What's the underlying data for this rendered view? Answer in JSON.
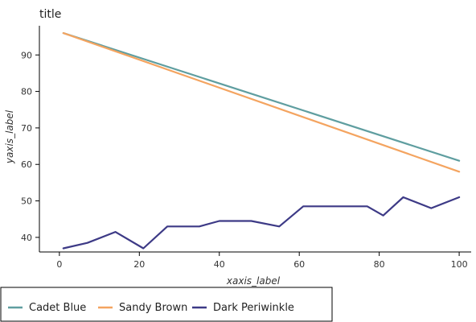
{
  "chart_data": {
    "type": "line",
    "title": "title",
    "xlabel": "xaxis_label",
    "ylabel": "yaxis_label",
    "xlim": [
      -5,
      103
    ],
    "ylim": [
      36,
      98
    ],
    "xticks": [
      0,
      20,
      40,
      60,
      80,
      100
    ],
    "yticks": [
      40,
      50,
      60,
      70,
      80,
      90
    ],
    "grid": false,
    "legend_position": "bottom",
    "series": [
      {
        "name": "Cadet Blue",
        "color": "#5f9ea0",
        "x": [
          1,
          100
        ],
        "y": [
          96,
          61
        ]
      },
      {
        "name": "Sandy Brown",
        "color": "#f4a460",
        "x": [
          1,
          100
        ],
        "y": [
          96,
          58
        ]
      },
      {
        "name": "Dark Periwinkle",
        "color": "#3d3a86",
        "x": [
          1,
          7,
          14,
          21,
          27,
          35,
          40,
          48,
          55,
          61,
          77,
          81,
          86,
          93,
          100
        ],
        "y": [
          37,
          38.5,
          41.5,
          37,
          43,
          43,
          44.5,
          44.5,
          43,
          48.5,
          48.5,
          46,
          51,
          48,
          51
        ]
      }
    ]
  }
}
